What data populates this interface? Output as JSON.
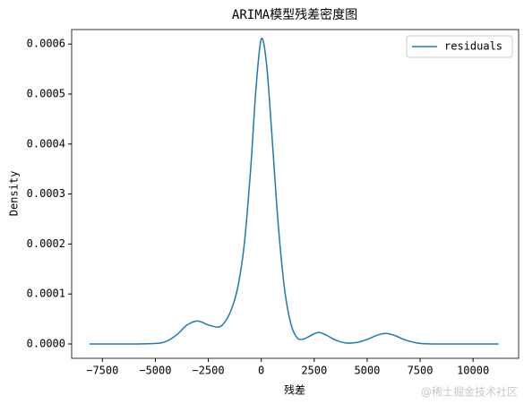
{
  "chart_data": {
    "type": "line",
    "title": "ARIMA模型残差密度图",
    "xlabel": "残差",
    "ylabel": "Density",
    "watermark": "@稀土掘金技术社区",
    "x": [
      -8100,
      -6000,
      -5000,
      -4500,
      -4000,
      -3500,
      -3000,
      -2500,
      -2000,
      -1700,
      -1400,
      -1100,
      -800,
      -500,
      -250,
      0,
      250,
      500,
      800,
      1100,
      1400,
      1700,
      2000,
      2300,
      2700,
      3100,
      3500,
      4000,
      4500,
      5000,
      5500,
      5900,
      6300,
      6800,
      7500,
      8500,
      11200
    ],
    "series": [
      {
        "name": "residuals",
        "color": "#1f77b4",
        "values": [
          0,
          0,
          1e-06,
          5e-06,
          1.8e-05,
          3.8e-05,
          4.6e-05,
          3.8e-05,
          3.4e-05,
          4.5e-05,
          7e-05,
          0.000115,
          0.0002,
          0.00035,
          0.00051,
          0.00061,
          0.00056,
          0.00042,
          0.00024,
          0.00011,
          4e-05,
          1.2e-05,
          1e-05,
          1.6e-05,
          2.3e-05,
          1.7e-05,
          8e-06,
          2e-06,
          3e-06,
          9e-06,
          1.8e-05,
          2.1e-05,
          1.7e-05,
          8e-06,
          1e-06,
          0,
          0
        ]
      }
    ],
    "xlim": [
      -8950,
      12150
    ],
    "xticks": [
      {
        "value": -7500,
        "label": "−7500"
      },
      {
        "value": -5000,
        "label": "−5000"
      },
      {
        "value": -2500,
        "label": "−2500"
      },
      0,
      2500,
      5000,
      7500,
      10000
    ],
    "ylim": [
      -2.87e-05,
      0.000629
    ],
    "yticks": [
      {
        "value": 0,
        "label": "0.0000"
      },
      {
        "value": 0.0001,
        "label": "0.0001"
      },
      {
        "value": 0.0002,
        "label": "0.0002"
      },
      {
        "value": 0.0003,
        "label": "0.0003"
      },
      {
        "value": 0.0004,
        "label": "0.0004"
      },
      {
        "value": 0.0005,
        "label": "0.0005"
      },
      {
        "value": 0.0006,
        "label": "0.0006"
      }
    ],
    "legend": "upper right"
  }
}
